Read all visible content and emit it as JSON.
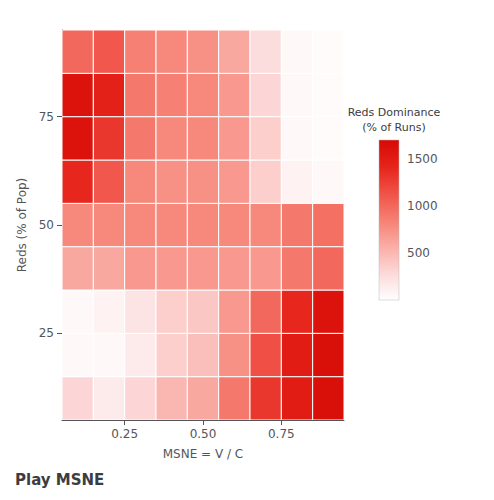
{
  "chart_data": {
    "type": "heatmap",
    "title": "Play MSNE",
    "xlabel": "MSNE = V / C",
    "ylabel": "Reds (% of Pop)",
    "x": [
      0.1,
      0.2,
      0.3,
      0.4,
      0.5,
      0.6,
      0.7,
      0.8,
      0.9
    ],
    "y": [
      10,
      20,
      30,
      40,
      50,
      60,
      70,
      80,
      90
    ],
    "values": [
      [
        300,
        150,
        300,
        500,
        600,
        900,
        1300,
        1500,
        1650
      ],
      [
        50,
        50,
        150,
        350,
        450,
        750,
        1150,
        1500,
        1650
      ],
      [
        50,
        100,
        200,
        350,
        400,
        700,
        1000,
        1400,
        1600
      ],
      [
        600,
        600,
        700,
        700,
        700,
        700,
        700,
        900,
        1000
      ],
      [
        800,
        800,
        800,
        800,
        800,
        800,
        800,
        900,
        950
      ],
      [
        1400,
        1100,
        800,
        750,
        750,
        700,
        350,
        100,
        50
      ],
      [
        1600,
        1300,
        900,
        800,
        800,
        700,
        350,
        50,
        30
      ],
      [
        1600,
        1450,
        900,
        850,
        800,
        700,
        300,
        50,
        30
      ],
      [
        1000,
        1100,
        850,
        800,
        750,
        600,
        250,
        50,
        30
      ]
    ],
    "xlim": [
      0.05,
      0.95
    ],
    "ylim": [
      5,
      95
    ],
    "xticks": [
      0.25,
      {
        "value": 0.5,
        "label": "0.50"
      },
      0.75
    ],
    "yticks": [
      25,
      50,
      75
    ],
    "colorbar_label": "Reds Dominance\n(% of Runs)",
    "colorbar_range": [
      0,
      1700
    ],
    "colorbar_ticks": [
      500,
      1000,
      1500
    ],
    "colors": [
      "#ffffff",
      "#fcd9d9",
      "#faada6",
      "#f58073",
      "#f05247",
      "#e6241a",
      "#d60a05"
    ]
  }
}
